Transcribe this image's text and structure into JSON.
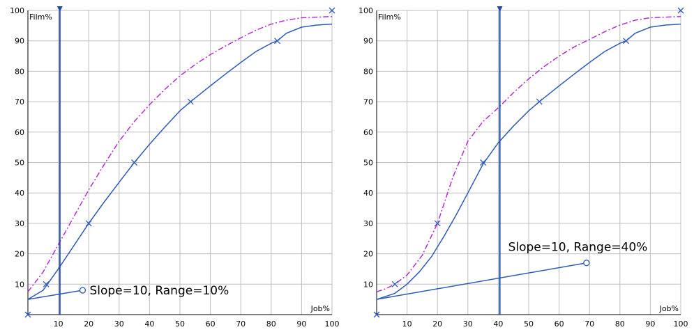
{
  "chart_data": [
    {
      "type": "line",
      "xlabel": "Job%",
      "ylabel": "Film%",
      "xlim": [
        0,
        100
      ],
      "ylim": [
        0,
        100
      ],
      "x_ticks": [
        "10",
        "20",
        "30",
        "40",
        "50",
        "60",
        "70",
        "80",
        "90",
        "100"
      ],
      "y_ticks": [
        "10",
        "20",
        "30",
        "40",
        "50",
        "60",
        "70",
        "80",
        "90",
        "100"
      ],
      "grid": true,
      "annotation": "Slope=10, Range=10%",
      "marker_x": 10.5,
      "colors": {
        "curve": "#2e5bb8",
        "dashdot": "#b030d0",
        "grid": "#bdbdbd",
        "marker": "#1f4aa8"
      },
      "series": [
        {
          "style": "solid",
          "x": [
            0,
            5,
            10,
            15,
            20,
            25,
            30,
            35,
            40,
            45,
            50,
            53.5,
            60,
            65,
            70,
            75,
            80,
            82,
            85,
            90,
            95,
            100
          ],
          "y": [
            5,
            8,
            15,
            22.5,
            30,
            36.9,
            43.5,
            50,
            56,
            61.6,
            67,
            70,
            75.2,
            79.1,
            82.9,
            86.5,
            89.2,
            90,
            92.5,
            94.5,
            95.2,
            95.5
          ]
        },
        {
          "style": "dashdot",
          "x": [
            0,
            5,
            10,
            15,
            20,
            25,
            30,
            35,
            40,
            45,
            50,
            55,
            60,
            65,
            70,
            75,
            80,
            85,
            90,
            95,
            100
          ],
          "y": [
            7.5,
            14,
            23,
            32,
            41,
            49.2,
            57,
            63.5,
            69,
            74,
            78.5,
            82.2,
            85.5,
            88.3,
            91,
            93.5,
            95.5,
            96.8,
            97.6,
            97.8,
            98
          ]
        },
        {
          "style": "slope-line",
          "x": [
            0,
            18
          ],
          "y": [
            5,
            8
          ]
        }
      ],
      "x_markers": {
        "x": [
          6,
          20,
          35,
          53.5,
          82,
          100
        ],
        "y": [
          10,
          30,
          50,
          70,
          90,
          100
        ]
      },
      "origin_marker": {
        "x": 0,
        "y": 0
      },
      "circle_marker": {
        "x": 18,
        "y": 8
      }
    },
    {
      "type": "line",
      "xlabel": "Job%",
      "ylabel": "Film%",
      "xlim": [
        0,
        100
      ],
      "ylim": [
        0,
        100
      ],
      "x_ticks": [
        "10",
        "20",
        "30",
        "40",
        "50",
        "60",
        "70",
        "80",
        "90",
        "100"
      ],
      "y_ticks": [
        "10",
        "20",
        "30",
        "40",
        "50",
        "60",
        "70",
        "80",
        "90",
        "100"
      ],
      "grid": true,
      "annotation": "Slope=10, Range=40%",
      "marker_x": 40.5,
      "colors": {
        "curve": "#2e5bb8",
        "dashdot": "#b030d0",
        "grid": "#bdbdbd",
        "marker": "#1f4aa8"
      },
      "series": [
        {
          "style": "solid",
          "x": [
            0,
            3,
            6,
            10,
            14,
            18,
            22,
            26,
            30,
            35,
            40,
            45,
            50,
            53.5,
            60,
            65,
            70,
            75,
            80,
            82,
            85,
            90,
            95,
            100
          ],
          "y": [
            5,
            6,
            7,
            10,
            14,
            19,
            25.5,
            32.5,
            40,
            49.5,
            56.5,
            62,
            67,
            70,
            75.2,
            79.1,
            82.9,
            86.5,
            89.2,
            90,
            92.5,
            94.5,
            95.2,
            95.5
          ]
        },
        {
          "style": "dashdot",
          "x": [
            0,
            3,
            6,
            10,
            15,
            20,
            25,
            30,
            35,
            40,
            45,
            50,
            55,
            60,
            65,
            70,
            75,
            80,
            85,
            90,
            95,
            100
          ],
          "y": [
            7.5,
            8.5,
            10,
            13,
            19.5,
            30,
            45,
            57,
            63.5,
            68,
            73,
            77.5,
            81.5,
            85,
            88,
            90.5,
            93,
            95.2,
            96.8,
            97.6,
            97.8,
            98
          ]
        },
        {
          "style": "slope-line",
          "x": [
            0,
            69
          ],
          "y": [
            5,
            17
          ]
        }
      ],
      "x_markers": {
        "x": [
          6,
          20,
          35,
          53.5,
          82,
          100
        ],
        "y": [
          10,
          30,
          50,
          70,
          90,
          100
        ]
      },
      "origin_marker": {
        "x": 0,
        "y": 0
      },
      "circle_marker": {
        "x": 69,
        "y": 17
      }
    }
  ]
}
